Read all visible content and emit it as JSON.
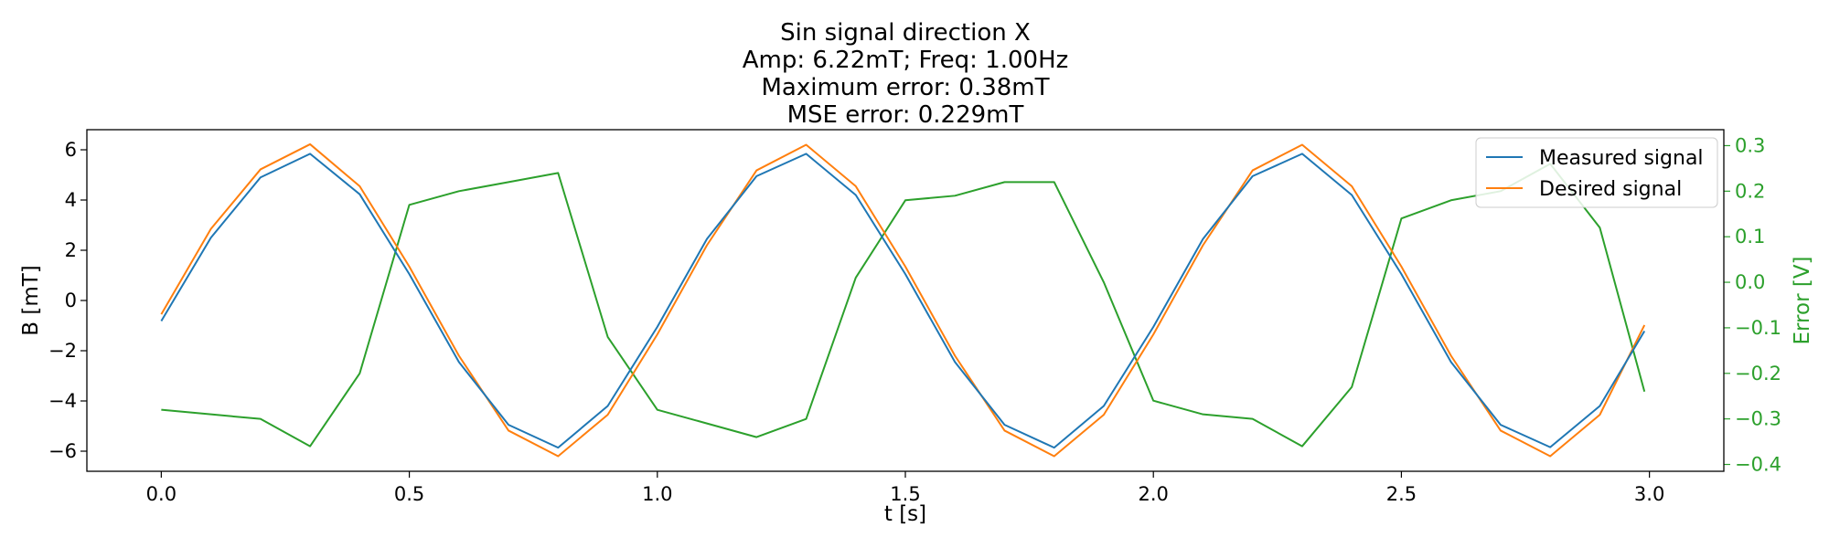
{
  "chart_data": {
    "type": "line",
    "title": [
      "Sin signal direction X",
      "Amp: 6.22mT; Freq: 1.00Hz",
      "Maximum error: 0.38mT",
      "MSE error: 0.229mT"
    ],
    "xlabel": "t [s]",
    "ylabel": "B [mT]",
    "y2label": "Error [V]",
    "xlim": [
      -0.15,
      3.15
    ],
    "ylim": [
      -6.8,
      6.8
    ],
    "y2lim": [
      -0.415,
      0.335
    ],
    "x_ticks": [
      0.0,
      0.5,
      1.0,
      1.5,
      2.0,
      2.5,
      3.0
    ],
    "x_tick_labels": [
      "0.0",
      "0.5",
      "1.0",
      "1.5",
      "2.0",
      "2.5",
      "3.0"
    ],
    "y_ticks": [
      -6,
      -4,
      -2,
      0,
      2,
      4,
      6
    ],
    "y_tick_labels": [
      "−6",
      "−4",
      "−2",
      "0",
      "2",
      "4",
      "6"
    ],
    "y2_ticks": [
      -0.4,
      -0.3,
      -0.2,
      -0.1,
      0.0,
      0.1,
      0.2,
      0.3
    ],
    "y2_tick_labels": [
      "−0.4",
      "−0.3",
      "−0.2",
      "−0.1",
      "0.0",
      "0.1",
      "0.2",
      "0.3"
    ],
    "grid": false,
    "legend_position": "top-right",
    "colors": {
      "measured": "#1f77b4",
      "desired": "#ff7f0e",
      "error": "#2ca02c"
    },
    "x": [
      0.0,
      0.1,
      0.2,
      0.3,
      0.4,
      0.5,
      0.6,
      0.7,
      0.8,
      0.9,
      1.0,
      1.1,
      1.2,
      1.3,
      1.4,
      1.5,
      1.6,
      1.7,
      1.8,
      1.9,
      2.0,
      2.1,
      2.2,
      2.3,
      2.4,
      2.5,
      2.6,
      2.7,
      2.8,
      2.9,
      2.99
    ],
    "series": [
      {
        "name": "Measured signal",
        "axis": "left",
        "color": "#1f77b4",
        "values": [
          -0.82,
          2.5,
          4.9,
          5.84,
          4.23,
          1.05,
          -2.45,
          -4.95,
          -5.86,
          -4.2,
          -1.05,
          2.45,
          4.95,
          5.84,
          4.2,
          1.05,
          -2.45,
          -4.95,
          -5.86,
          -4.2,
          -1.05,
          2.45,
          4.95,
          5.84,
          4.2,
          1.05,
          -2.45,
          -4.95,
          -5.84,
          -4.2,
          -1.22
        ]
      },
      {
        "name": "Desired signal",
        "axis": "left",
        "color": "#ff7f0e",
        "values": [
          -0.55,
          2.85,
          5.22,
          6.22,
          4.55,
          1.35,
          -2.2,
          -5.18,
          -6.2,
          -4.55,
          -1.35,
          2.2,
          5.18,
          6.2,
          4.55,
          1.35,
          -2.2,
          -5.18,
          -6.2,
          -4.55,
          -1.35,
          2.2,
          5.18,
          6.2,
          4.55,
          1.35,
          -2.2,
          -5.18,
          -6.2,
          -4.55,
          -0.98
        ]
      },
      {
        "name": "",
        "axis": "right",
        "color": "#2ca02c",
        "values": [
          -0.28,
          -0.29,
          -0.3,
          -0.36,
          -0.2,
          0.17,
          0.2,
          0.22,
          0.24,
          -0.12,
          -0.28,
          -0.31,
          -0.34,
          -0.3,
          0.01,
          0.18,
          0.19,
          0.22,
          0.22,
          0.0,
          -0.26,
          -0.29,
          -0.3,
          -0.36,
          -0.23,
          0.14,
          0.18,
          0.2,
          0.26,
          0.12,
          -0.24
        ]
      }
    ]
  }
}
